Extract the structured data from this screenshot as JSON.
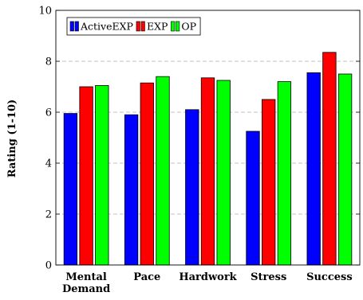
{
  "chart_data": {
    "type": "bar",
    "ylabel": "Rating (1-10)",
    "xlabel": "",
    "ylim": [
      0,
      10
    ],
    "yticks": [
      0,
      2,
      4,
      6,
      8,
      10
    ],
    "grid": "horizontal dashed",
    "legend_position": "top-left",
    "categories": [
      [
        "Mental",
        "Demand"
      ],
      [
        "Pace"
      ],
      [
        "Hardwork"
      ],
      [
        "Stress"
      ],
      [
        "Success"
      ]
    ],
    "series": [
      {
        "name": "ActiveEXP",
        "color": "#0000ff",
        "values": [
          5.95,
          5.9,
          6.1,
          5.25,
          7.55
        ]
      },
      {
        "name": "EXP",
        "color": "#ff0000",
        "values": [
          7.0,
          7.15,
          7.35,
          6.5,
          8.35
        ]
      },
      {
        "name": "OP",
        "color": "#00ff00",
        "values": [
          7.05,
          7.4,
          7.25,
          7.2,
          7.5
        ]
      }
    ]
  }
}
